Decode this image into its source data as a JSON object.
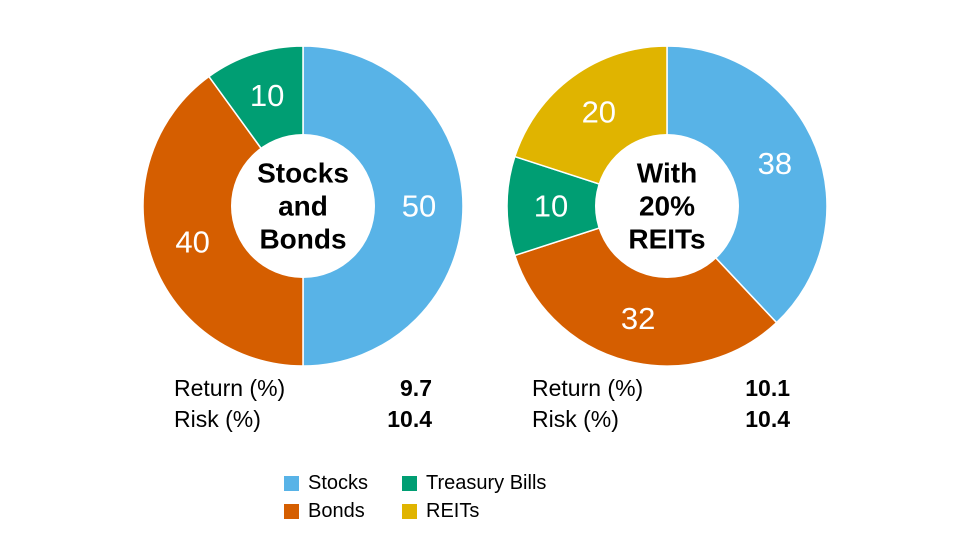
{
  "chart_data": [
    {
      "type": "pie",
      "title_lines": [
        "Stocks",
        "and",
        "Bonds"
      ],
      "slices": [
        {
          "label": "Stocks",
          "value": 50,
          "value_label": "50",
          "color": "#58b3e7"
        },
        {
          "label": "Bonds",
          "value": 40,
          "value_label": "40",
          "color": "#d55e00"
        },
        {
          "label": "Treasury Bills",
          "value": 10,
          "value_label": "10",
          "color": "#009e73"
        }
      ],
      "stats": [
        {
          "label": "Return (%)",
          "value": "9.7"
        },
        {
          "label": "Risk (%)",
          "value": "10.4"
        }
      ]
    },
    {
      "type": "pie",
      "title_lines": [
        "With",
        "20%",
        "REITs"
      ],
      "slices": [
        {
          "label": "Stocks",
          "value": 38,
          "value_label": "38",
          "color": "#58b3e7"
        },
        {
          "label": "Bonds",
          "value": 32,
          "value_label": "32",
          "color": "#d55e00"
        },
        {
          "label": "Treasury Bills",
          "value": 10,
          "value_label": "10",
          "color": "#009e73"
        },
        {
          "label": "REITs",
          "value": 20,
          "value_label": "20",
          "color": "#e0b400"
        }
      ],
      "stats": [
        {
          "label": "Return (%)",
          "value": "10.1"
        },
        {
          "label": "Risk (%)",
          "value": "10.4"
        }
      ]
    }
  ],
  "legend": [
    {
      "label": "Stocks",
      "color": "#58b3e7"
    },
    {
      "label": "Treasury Bills",
      "color": "#009e73"
    },
    {
      "label": "Bonds",
      "color": "#d55e00"
    },
    {
      "label": "REITs",
      "color": "#e0b400"
    }
  ]
}
